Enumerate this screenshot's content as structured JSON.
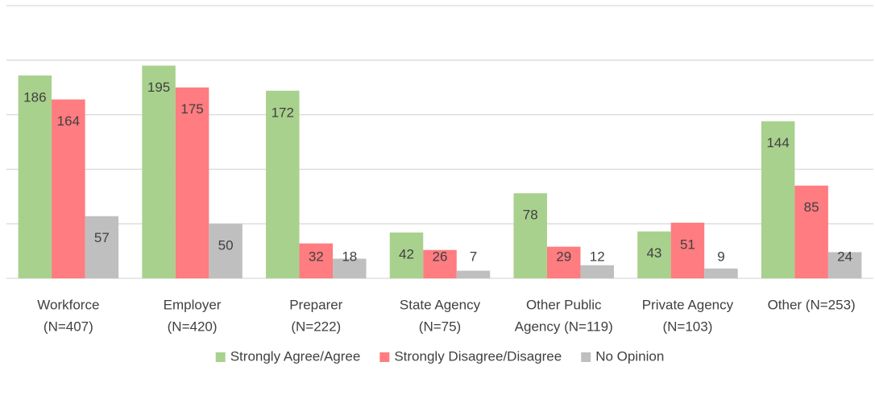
{
  "chart_data": {
    "type": "bar",
    "categories": [
      [
        "Workforce",
        "(N=407)"
      ],
      [
        "Employer",
        "(N=420)"
      ],
      [
        "Preparer",
        "(N=222)"
      ],
      [
        "State Agency",
        "(N=75)"
      ],
      [
        "Other Public",
        "Agency (N=119)"
      ],
      [
        "Private Agency",
        "(N=103)"
      ],
      [
        "Other (N=253)"
      ]
    ],
    "series": [
      {
        "name": "Strongly Agree/Agree",
        "color": "#a9d18e",
        "values": [
          186,
          195,
          172,
          42,
          78,
          43,
          144
        ]
      },
      {
        "name": "Strongly Disagree/Disagree",
        "color": "#ff7c80",
        "values": [
          164,
          175,
          32,
          26,
          29,
          51,
          85
        ]
      },
      {
        "name": "No Opinion",
        "color": "#bfbfbf",
        "values": [
          57,
          50,
          18,
          7,
          12,
          9,
          24
        ]
      }
    ],
    "ylim": [
      0,
      250
    ],
    "yticks": [
      0,
      50,
      100,
      150,
      200,
      250
    ],
    "grid": true,
    "legend": "bottom"
  }
}
